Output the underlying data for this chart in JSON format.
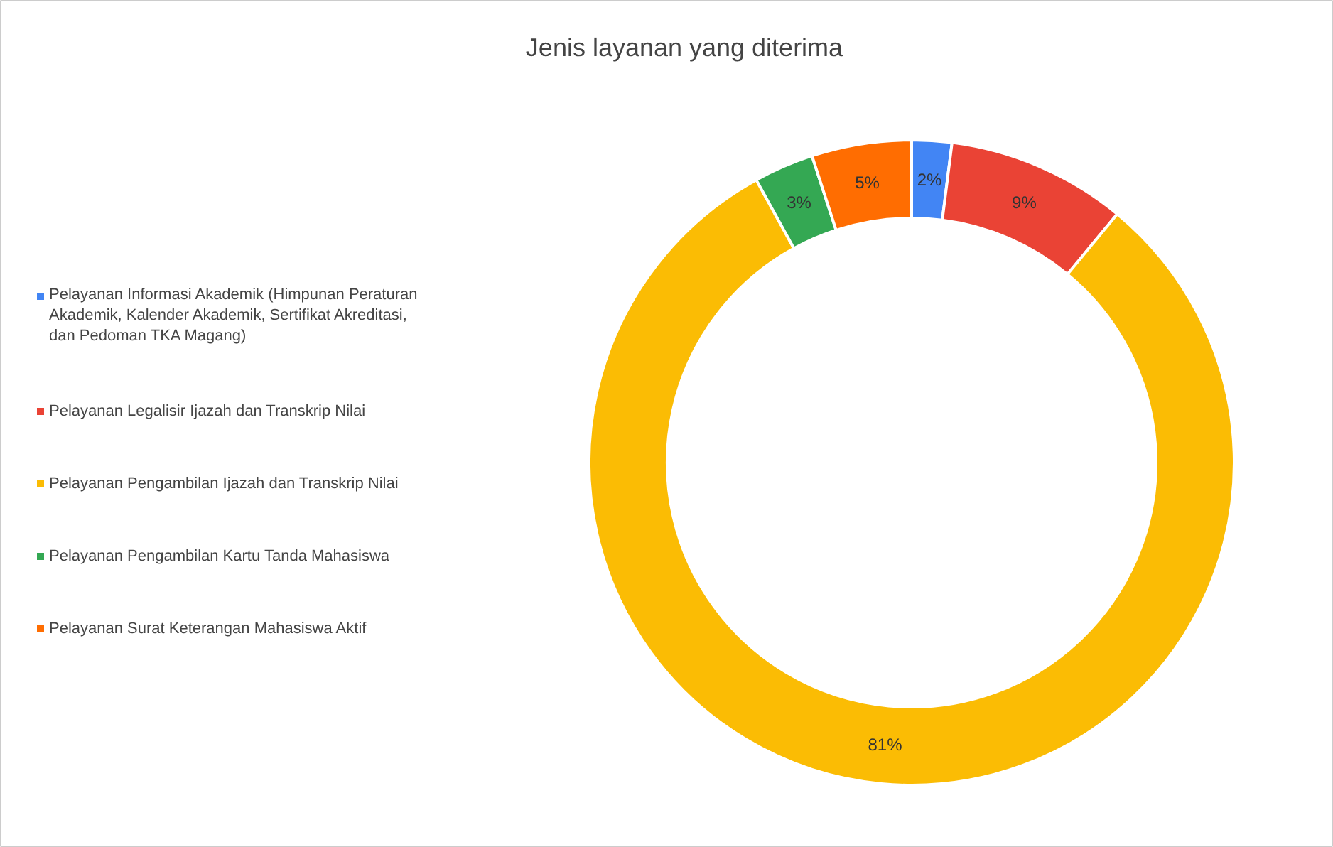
{
  "chart_data": {
    "type": "donut",
    "title": "Jenis layanan yang diterima",
    "categories": [
      "Pelayanan Informasi Akademik (Himpunan Peraturan Akademik, Kalender Akademik, Sertifikat Akreditasi, dan Pedoman TKA Magang)",
      "Pelayanan Legalisir Ijazah dan Transkrip Nilai",
      "Pelayanan Pengambilan Ijazah dan Transkrip Nilai",
      "Pelayanan Pengambilan Kartu Tanda Mahasiswa",
      "Pelayanan Surat Keterangan Mahasiswa Aktif"
    ],
    "values": [
      2,
      9,
      81,
      3,
      5
    ],
    "colors": [
      "#4285f4",
      "#ea4335",
      "#fbbc04",
      "#34a853",
      "#ff6d01"
    ],
    "value_labels": [
      "2%",
      "9%",
      "81%",
      "3%",
      "5%"
    ],
    "legend": "left"
  }
}
